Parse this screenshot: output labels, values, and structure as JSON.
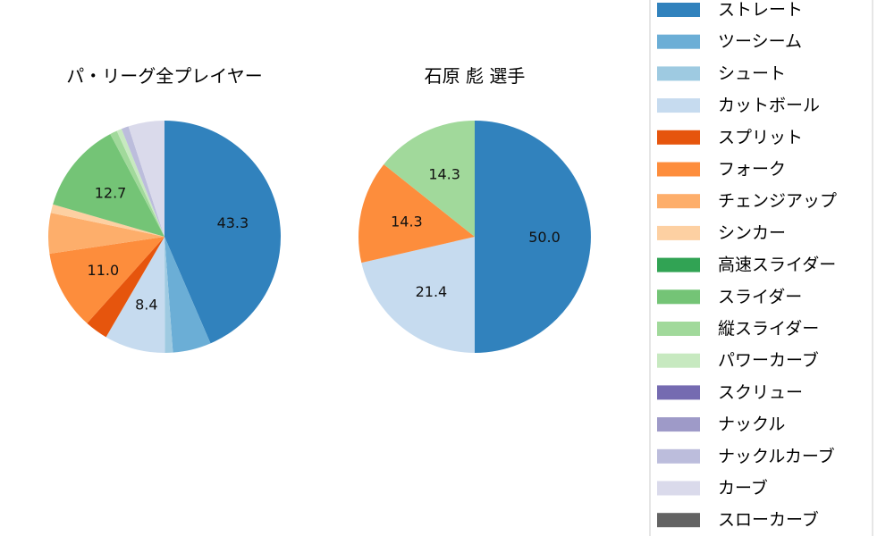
{
  "chart_data": [
    {
      "type": "pie",
      "title": "パ・リーグ全プレイヤー",
      "slices": [
        {
          "name": "ストレート",
          "value": 43.3,
          "label": "43.3"
        },
        {
          "name": "ツーシーム",
          "value": 5.3,
          "label": ""
        },
        {
          "name": "シュート",
          "value": 1.1,
          "label": ""
        },
        {
          "name": "カットボール",
          "value": 8.4,
          "label": "8.4"
        },
        {
          "name": "スプリット",
          "value": 3.2,
          "label": ""
        },
        {
          "name": "フォーク",
          "value": 11.0,
          "label": "11.0"
        },
        {
          "name": "チェンジアップ",
          "value": 5.6,
          "label": ""
        },
        {
          "name": "シンカー",
          "value": 1.2,
          "label": ""
        },
        {
          "name": "高速スライダー",
          "value": 0.0,
          "label": ""
        },
        {
          "name": "スライダー",
          "value": 12.7,
          "label": "12.7"
        },
        {
          "name": "縦スライダー",
          "value": 1.0,
          "label": ""
        },
        {
          "name": "パワーカーブ",
          "value": 0.7,
          "label": ""
        },
        {
          "name": "スクリュー",
          "value": 0.0,
          "label": ""
        },
        {
          "name": "ナックル",
          "value": 0.0,
          "label": ""
        },
        {
          "name": "ナックルカーブ",
          "value": 1.0,
          "label": ""
        },
        {
          "name": "カーブ",
          "value": 5.0,
          "label": ""
        },
        {
          "name": "スローカーブ",
          "value": 0.0,
          "label": ""
        }
      ]
    },
    {
      "type": "pie",
      "title": "石原 彪  選手",
      "slices": [
        {
          "name": "ストレート",
          "value": 50.0,
          "label": "50.0"
        },
        {
          "name": "カットボール",
          "value": 21.4,
          "label": "21.4"
        },
        {
          "name": "フォーク",
          "value": 14.3,
          "label": "14.3"
        },
        {
          "name": "縦スライダー",
          "value": 14.3,
          "label": "14.3"
        }
      ]
    }
  ],
  "legend": {
    "placement": "right",
    "entries": [
      {
        "name": "ストレート",
        "color": "#3182bd"
      },
      {
        "name": "ツーシーム",
        "color": "#6baed6"
      },
      {
        "name": "シュート",
        "color": "#9ecae1"
      },
      {
        "name": "カットボール",
        "color": "#c6dbef"
      },
      {
        "name": "スプリット",
        "color": "#e6550d"
      },
      {
        "name": "フォーク",
        "color": "#fd8d3c"
      },
      {
        "name": "チェンジアップ",
        "color": "#fdae6b"
      },
      {
        "name": "シンカー",
        "color": "#fdd0a2"
      },
      {
        "name": "高速スライダー",
        "color": "#31a354"
      },
      {
        "name": "スライダー",
        "color": "#74c476"
      },
      {
        "name": "縦スライダー",
        "color": "#a1d99b"
      },
      {
        "name": "パワーカーブ",
        "color": "#c7e9c0"
      },
      {
        "name": "スクリュー",
        "color": "#756bb1"
      },
      {
        "name": "ナックル",
        "color": "#9e9ac8"
      },
      {
        "name": "ナックルカーブ",
        "color": "#bcbddc"
      },
      {
        "name": "カーブ",
        "color": "#dadaeb"
      },
      {
        "name": "スローカーブ",
        "color": "#636363"
      }
    ]
  }
}
